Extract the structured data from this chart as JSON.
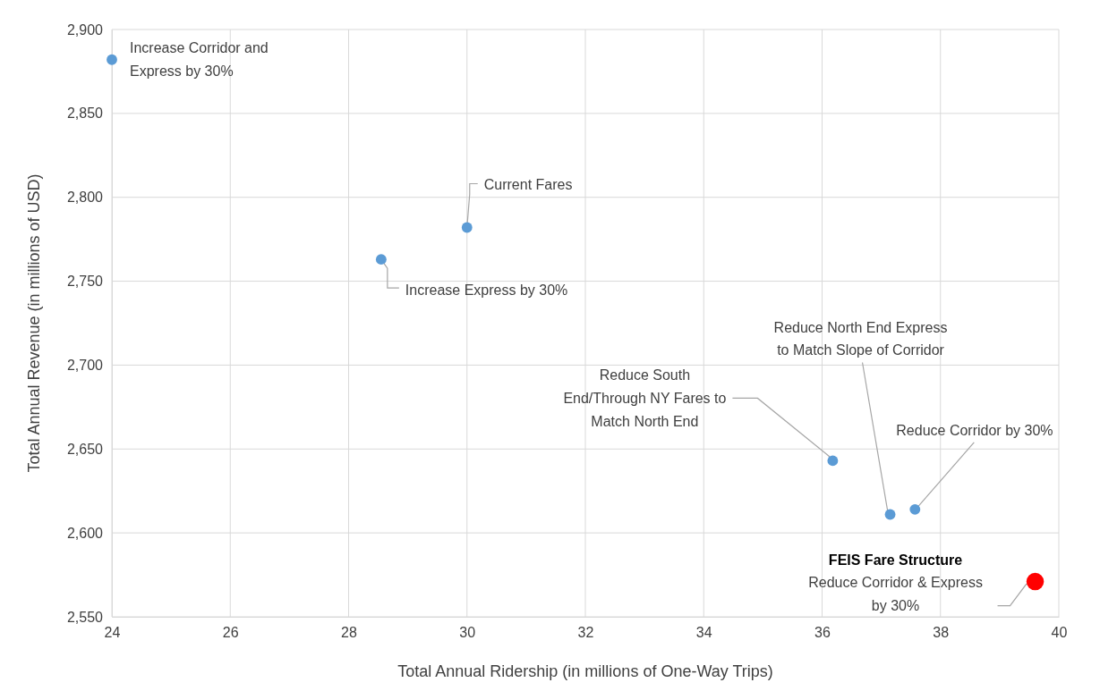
{
  "chart_data": {
    "type": "scatter",
    "xlabel": "Total Annual Ridership (in millions of One-Way Trips)",
    "ylabel": "Total Annual Revenue (in millions of USD)",
    "xlim": [
      24,
      40
    ],
    "xticks": [
      24,
      26,
      28,
      30,
      32,
      34,
      36,
      38,
      40
    ],
    "ylim": [
      2550,
      2900
    ],
    "yticks": [
      {
        "value": 2550,
        "label": "2,550"
      },
      {
        "value": 2600,
        "label": "2,600"
      },
      {
        "value": 2650,
        "label": "2,650"
      },
      {
        "value": 2700,
        "label": "2,700"
      },
      {
        "value": 2750,
        "label": "2,750"
      },
      {
        "value": 2800,
        "label": "2,800"
      },
      {
        "value": 2850,
        "label": "2,850"
      },
      {
        "value": 2900,
        "label": "2,900"
      }
    ],
    "grid": true,
    "marker": "circle",
    "series": [
      {
        "color": "#5b9bd5",
        "x": [
          24.0,
          30.0,
          28.55,
          36.18,
          37.15,
          37.57
        ],
        "values": [
          2882,
          2782,
          2763,
          2643,
          2611,
          2614
        ]
      },
      {
        "color": "#ff0000",
        "x": [
          39.6
        ],
        "values": [
          2571
        ]
      }
    ],
    "annotations": [
      {
        "text": "Increase Corridor and\nExpress by 30%",
        "x": 24.0,
        "y": 2882
      },
      {
        "text": "Current Fares",
        "x": 30.0,
        "y": 2782
      },
      {
        "text": "Increase Express by 30%",
        "x": 28.55,
        "y": 2763
      },
      {
        "text": "Reduce South\nEnd/Through NY Fares to\nMatch North End",
        "x": 36.18,
        "y": 2643
      },
      {
        "text": "Reduce North End Express\nto Match Slope of Corridor",
        "x": 37.15,
        "y": 2611
      },
      {
        "text": "Reduce Corridor by 30%",
        "x": 37.57,
        "y": 2614
      },
      {
        "text": "FEIS Fare Structure\nReduce Corridor & Express\nby 30%",
        "x": 39.6,
        "y": 2571
      }
    ]
  }
}
